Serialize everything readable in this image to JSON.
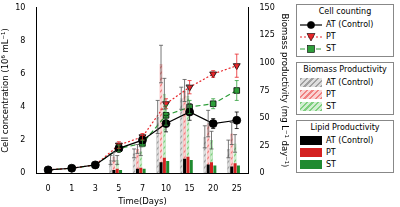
{
  "chart_data": {
    "type": "bar",
    "x_label": "Time(Days)",
    "y_label": "Cell concentration (10⁶ mL⁻¹)",
    "y2_label": "Biomass productivity (mg L⁻¹ day⁻¹)",
    "categories": [
      "0",
      "1",
      "3",
      "5",
      "7",
      "10",
      "15",
      "20",
      "25"
    ],
    "ylim": [
      0,
      10
    ],
    "yticks": [
      0,
      2,
      4,
      6,
      8,
      10
    ],
    "y2lim": [
      0,
      150
    ],
    "y2ticks": [
      0,
      25,
      50,
      75,
      100,
      125,
      150
    ],
    "grid": false,
    "legend": "right",
    "series": [
      {
        "name": "AT (Control)",
        "group": "Cell counting",
        "type": "line",
        "color": "#000000",
        "marker": "circle",
        "line_style": "solid",
        "values": [
          0.2,
          0.3,
          0.5,
          1.5,
          2.0,
          3.0,
          3.7,
          3.0,
          3.2
        ],
        "errors": [
          null,
          null,
          null,
          0.2,
          0.2,
          0.5,
          0.5,
          0.3,
          0.5
        ]
      },
      {
        "name": "PT",
        "group": "Cell counting",
        "type": "line",
        "color": "#e8262a",
        "marker": "triangle-down",
        "line_style": "dotted",
        "values": [
          0.2,
          0.3,
          0.5,
          1.7,
          2.2,
          4.2,
          5.2,
          6.0,
          6.5
        ],
        "errors": [
          null,
          null,
          null,
          0.2,
          0.2,
          0.3,
          0.4,
          0.2,
          0.7
        ]
      },
      {
        "name": "ST",
        "group": "Cell counting",
        "type": "line",
        "color": "#2e9e3a",
        "marker": "square",
        "line_style": "dashed",
        "values": [
          0.2,
          0.3,
          0.5,
          1.5,
          1.8,
          3.5,
          4.0,
          4.2,
          5.0
        ],
        "errors": [
          null,
          null,
          null,
          0.2,
          0.2,
          0.6,
          0.4,
          0.3,
          0.6
        ]
      },
      {
        "name": "AT (Control)",
        "group": "Biomass Productivity",
        "type": "bar",
        "axis": "y2",
        "color": "#a0a0a0",
        "marker": "hatch",
        "values": [
          null,
          null,
          null,
          12,
          18,
          51,
          68,
          33,
          22
        ],
        "errors": [
          null,
          null,
          null,
          4,
          4,
          15,
          10,
          10,
          8
        ]
      },
      {
        "name": "PT",
        "group": "Biomass Productivity",
        "type": "bar",
        "axis": "y2",
        "color": "#f08080",
        "marker": "hatch",
        "values": [
          null,
          null,
          null,
          15,
          22,
          99,
          75,
          45,
          36
        ],
        "errors": [
          null,
          null,
          null,
          4,
          4,
          17,
          10,
          12,
          10
        ]
      },
      {
        "name": "ST",
        "group": "Biomass Productivity",
        "type": "bar",
        "axis": "y2",
        "color": "#7fcf7f",
        "marker": "hatch",
        "values": [
          null,
          null,
          null,
          12,
          20,
          72,
          70,
          30,
          27
        ],
        "errors": [
          null,
          null,
          null,
          4,
          4,
          14,
          10,
          8,
          8
        ]
      },
      {
        "name": "AT (Control)",
        "group": "Lipid Productivity",
        "type": "bar",
        "axis": "y2",
        "color": "#000000",
        "marker": "solid",
        "values": [
          null,
          null,
          null,
          3,
          4,
          10,
          13,
          8,
          6
        ]
      },
      {
        "name": "PT",
        "group": "Lipid Productivity",
        "type": "bar",
        "axis": "y2",
        "color": "#d42020",
        "marker": "solid",
        "values": [
          null,
          null,
          null,
          4,
          5,
          14,
          15,
          10,
          9
        ]
      },
      {
        "name": "ST",
        "group": "Lipid Productivity",
        "type": "bar",
        "axis": "y2",
        "color": "#1f8a30",
        "marker": "solid",
        "values": [
          null,
          null,
          null,
          3,
          4,
          11,
          12,
          7,
          7
        ]
      }
    ]
  }
}
